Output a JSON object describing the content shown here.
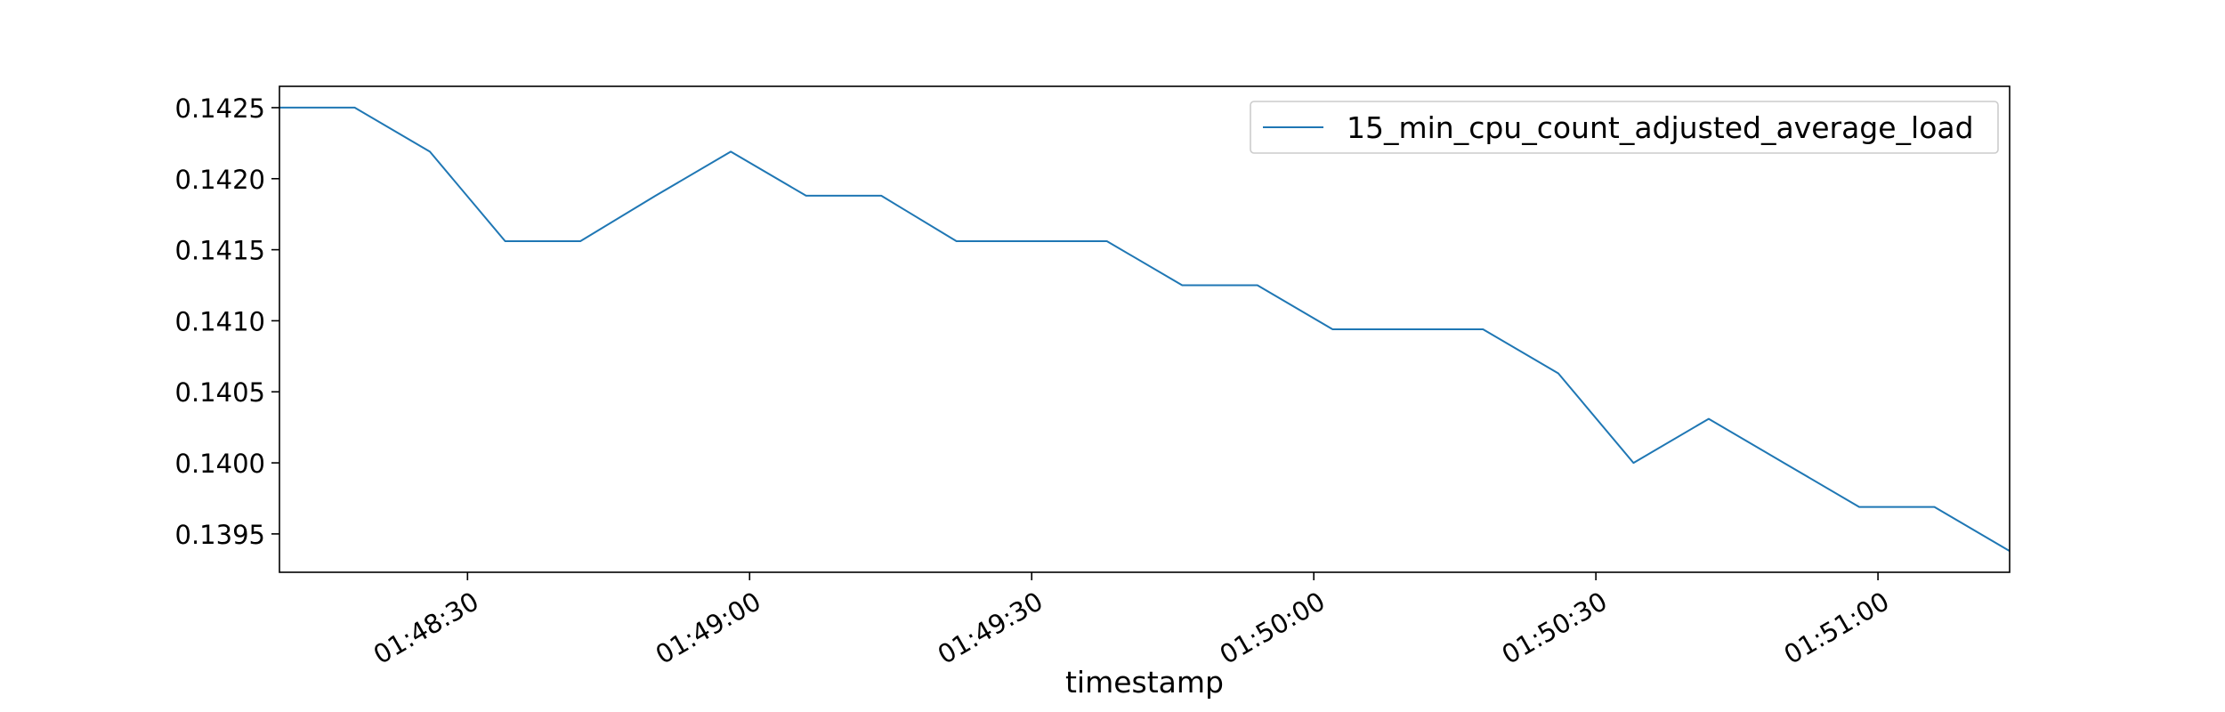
{
  "chart_data": {
    "type": "line",
    "xlabel": "timestamp",
    "ylabel": "",
    "x_ticks": [
      "01:48:30",
      "01:49:00",
      "01:49:30",
      "01:50:00",
      "01:50:30",
      "01:51:00"
    ],
    "y_ticks": [
      "0.1395",
      "0.1400",
      "0.1405",
      "0.1410",
      "0.1415",
      "0.1420",
      "0.1425"
    ],
    "x": [
      "01:48:10",
      "01:48:18",
      "01:48:26",
      "01:48:34",
      "01:48:42",
      "01:48:50",
      "01:48:58",
      "01:49:06",
      "01:49:14",
      "01:49:22",
      "01:49:30",
      "01:49:38",
      "01:49:46",
      "01:49:54",
      "01:50:02",
      "01:50:10",
      "01:50:18",
      "01:50:26",
      "01:50:34",
      "01:50:42",
      "01:50:50",
      "01:50:58",
      "01:51:06",
      "01:51:14"
    ],
    "xlim": [
      "01:48:10",
      "01:51:14"
    ],
    "ylim": [
      0.13923,
      0.14265
    ],
    "grid": false,
    "legend_position": "top-right",
    "series": [
      {
        "name": "15_min_cpu_count_adjusted_average_load",
        "color": "#1f77b4",
        "values": [
          0.1425,
          0.1425,
          0.14219,
          0.14156,
          0.14156,
          0.14188,
          0.14219,
          0.14188,
          0.14188,
          0.14156,
          0.14156,
          0.14156,
          0.14125,
          0.14125,
          0.14094,
          0.14094,
          0.14094,
          0.14063,
          0.14,
          0.14031,
          0.14,
          0.13969,
          0.13969,
          0.13938
        ]
      }
    ]
  }
}
